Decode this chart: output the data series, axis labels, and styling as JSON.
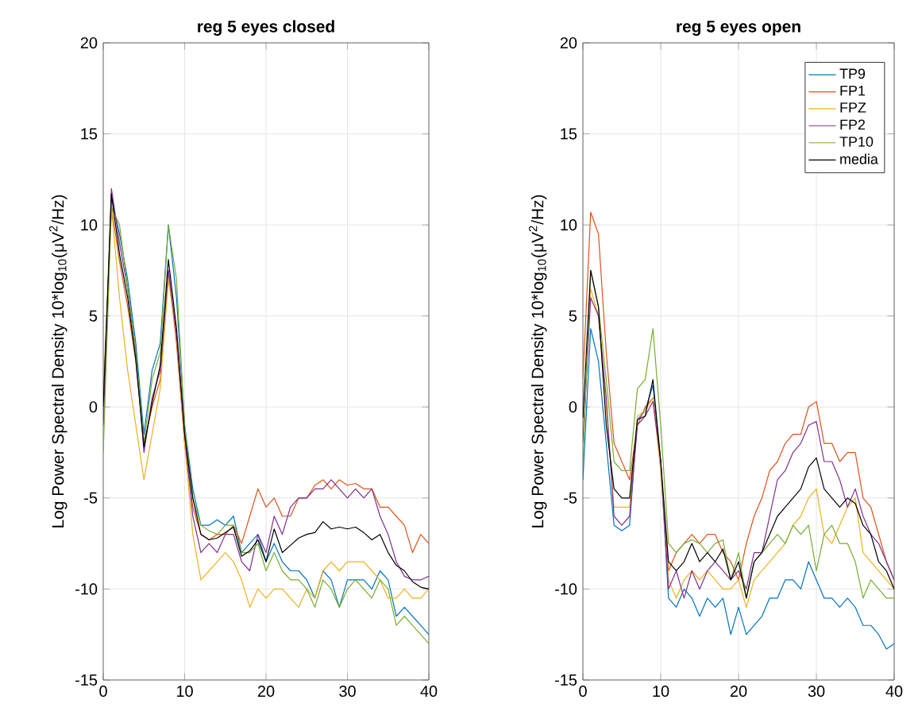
{
  "chart_data": [
    {
      "type": "line",
      "title": "reg 5 eyes closed",
      "ylabel": "Log Power Spectral Density 10*log$_{10}$(μV$^{2}$/Hz)",
      "grid": true,
      "xlim": [
        0,
        40
      ],
      "ylim": [
        -15,
        20
      ],
      "xticks": [
        0,
        10,
        20,
        30,
        40
      ],
      "yticks": [
        -15,
        -10,
        -5,
        0,
        5,
        10,
        15,
        20
      ],
      "x": [
        0,
        1,
        2,
        3,
        4,
        5,
        6,
        7,
        8,
        9,
        10,
        11,
        12,
        13,
        14,
        15,
        16,
        17,
        18,
        19,
        20,
        21,
        22,
        23,
        24,
        25,
        26,
        27,
        28,
        29,
        30,
        31,
        32,
        33,
        34,
        35,
        36,
        37,
        38,
        39,
        40
      ],
      "series": [
        {
          "color": "#0072bd",
          "values": [
            -1,
            11.5,
            9.5,
            7,
            3.5,
            -1.5,
            2,
            3.5,
            10,
            6,
            -1,
            -4.5,
            -6.5,
            -6.5,
            -6.2,
            -6.5,
            -6,
            -8,
            -7.5,
            -7,
            -8.5,
            -7.5,
            -8.5,
            -9,
            -9,
            -9.5,
            -10.5,
            -9,
            -9.5,
            -11,
            -9.5,
            -9.5,
            -9.5,
            -10,
            -9,
            -9.5,
            -11.5,
            -11,
            -11.5,
            -12,
            -12.5
          ]
        },
        {
          "color": "#d95319",
          "values": [
            0.5,
            11,
            8,
            5.5,
            2.5,
            -2,
            0,
            1.5,
            7.5,
            3.5,
            -2,
            -5.5,
            -7,
            -7.3,
            -7,
            -7,
            -6.5,
            -7.5,
            -6,
            -4.5,
            -5.5,
            -5,
            -6,
            -6,
            -5,
            -5,
            -4.3,
            -4,
            -4.5,
            -4,
            -4.3,
            -4.2,
            -4.5,
            -4.5,
            -5.5,
            -5.5,
            -6,
            -6.5,
            -8,
            -7,
            -7.5
          ]
        },
        {
          "color": "#edb120",
          "values": [
            -0.5,
            11,
            6,
            2,
            -1,
            -4,
            -1.5,
            1,
            7,
            4,
            -2,
            -7,
            -9.5,
            -9,
            -8.5,
            -8,
            -8.5,
            -9.5,
            -11,
            -10,
            -10.5,
            -10,
            -10,
            -10.5,
            -11,
            -10,
            -10.5,
            -9,
            -8.5,
            -9,
            -8.5,
            -8.5,
            -8.5,
            -9,
            -9.5,
            -10.5,
            -10.5,
            -10,
            -10.5,
            -10.5,
            -10
          ]
        },
        {
          "color": "#7e2f8e",
          "values": [
            -1,
            12,
            9,
            6.5,
            3,
            -2.5,
            0.5,
            2,
            7.5,
            4,
            -1.5,
            -6,
            -8,
            -7.5,
            -8,
            -7,
            -7,
            -8.5,
            -9,
            -7,
            -8,
            -6,
            -7,
            -5.5,
            -5,
            -5,
            -4.5,
            -4.5,
            -4,
            -4.5,
            -5,
            -4.5,
            -5,
            -4.5,
            -6,
            -7,
            -8.5,
            -9.3,
            -9.5,
            -9.5,
            -9.3
          ]
        },
        {
          "color": "#77ac30",
          "values": [
            -2.5,
            11,
            10,
            6.5,
            3,
            -2,
            1.5,
            3,
            10,
            7,
            -1,
            -5,
            -6.5,
            -6.8,
            -7,
            -6.5,
            -6.5,
            -8,
            -8,
            -7.5,
            -9,
            -8,
            -9,
            -9.5,
            -9.5,
            -10,
            -11,
            -9.5,
            -10,
            -11,
            -10,
            -9.5,
            -10,
            -10.5,
            -9.5,
            -10,
            -12,
            -11.5,
            -12,
            -12.5,
            -13
          ]
        },
        {
          "color": "#000000",
          "values": [
            0,
            11.7,
            8.4,
            6,
            2.6,
            -2.2,
            0.2,
            2.3,
            8.1,
            4.3,
            -1.5,
            -5,
            -7,
            -7.3,
            -7.2,
            -6.9,
            -6.6,
            -8.2,
            -7.9,
            -7.3,
            -8.5,
            -6.7,
            -8,
            -7.6,
            -7.2,
            -7,
            -6.9,
            -6.3,
            -6.7,
            -6.6,
            -6.7,
            -6.6,
            -6.9,
            -7.3,
            -7,
            -8,
            -8.7,
            -9,
            -9.6,
            -9.9,
            -10
          ]
        }
      ]
    },
    {
      "type": "line",
      "title": "reg 5 eyes open",
      "ylabel": "Log Power Spectral Density 10*log$_{10}$(μV$^{2}$/Hz)",
      "grid": true,
      "legend": "top right",
      "xlim": [
        0,
        40
      ],
      "ylim": [
        -15,
        20
      ],
      "xticks": [
        0,
        10,
        20,
        30,
        40
      ],
      "yticks": [
        -15,
        -10,
        -5,
        0,
        5,
        10,
        15,
        20
      ],
      "x": [
        0,
        1,
        2,
        3,
        4,
        5,
        6,
        7,
        8,
        9,
        10,
        11,
        12,
        13,
        14,
        15,
        16,
        17,
        18,
        19,
        20,
        21,
        22,
        23,
        24,
        25,
        26,
        27,
        28,
        29,
        30,
        31,
        32,
        33,
        34,
        35,
        36,
        37,
        38,
        39,
        40
      ],
      "series": [
        {
          "name": "TP9",
          "color": "#0072bd",
          "values": [
            -4,
            4.3,
            2.5,
            -2,
            -6.5,
            -6.8,
            -6.5,
            -0.7,
            -0.2,
            1.2,
            -3,
            -10.5,
            -11,
            -10,
            -10.5,
            -11.5,
            -10.5,
            -11,
            -10.5,
            -12.5,
            -11,
            -12.5,
            -12,
            -11.5,
            -10.5,
            -10.5,
            -9.5,
            -9.5,
            -10,
            -8.5,
            -9.5,
            -10.5,
            -10.5,
            -11,
            -10.5,
            -11,
            -12,
            -12,
            -12.5,
            -13.3,
            -13
          ]
        },
        {
          "name": "FP1",
          "color": "#d95319",
          "values": [
            1.5,
            10.7,
            9.5,
            3,
            -2,
            -3,
            -4,
            -1,
            0,
            0.5,
            -3,
            -9,
            -8,
            -7.5,
            -7,
            -7.5,
            -7,
            -7,
            -8,
            -8.5,
            -9.5,
            -7.5,
            -6,
            -5,
            -3.5,
            -3,
            -2,
            -1.5,
            -1.5,
            0,
            0.3,
            -2,
            -2,
            -3,
            -2.5,
            -2.5,
            -5,
            -5.5,
            -7,
            -8.5,
            -9.5
          ]
        },
        {
          "name": "FPZ",
          "color": "#edb120",
          "values": [
            -2,
            6.5,
            5,
            0,
            -5.5,
            -5.5,
            -5.5,
            -0.5,
            -0.2,
            0.5,
            -3.5,
            -9.5,
            -10.5,
            -9.5,
            -9,
            -9.5,
            -9,
            -9.5,
            -10,
            -10,
            -9.5,
            -11,
            -9.5,
            -9,
            -8.5,
            -8,
            -7.5,
            -6.5,
            -6,
            -5,
            -4.5,
            -7,
            -7.5,
            -6.5,
            -5.5,
            -5,
            -8,
            -8.5,
            -9,
            -9.5,
            -10
          ]
        },
        {
          "name": "FP2",
          "color": "#7e2f8e",
          "values": [
            -2,
            6,
            5,
            0.5,
            -6,
            -6.5,
            -6,
            -1,
            -0.5,
            0.3,
            -3,
            -10,
            -9,
            -10.5,
            -9,
            -10,
            -9,
            -8.5,
            -9,
            -9.5,
            -9,
            -10,
            -8,
            -8,
            -6,
            -4,
            -3.5,
            -2.5,
            -2,
            -1,
            -0.8,
            -3,
            -3,
            -4,
            -5.5,
            -4.5,
            -6,
            -7,
            -7.5,
            -8.5,
            -9.5
          ]
        },
        {
          "name": "TP10",
          "color": "#77ac30",
          "values": [
            -3,
            7.5,
            5.5,
            1.5,
            -3,
            -3.5,
            -3.5,
            1,
            1.5,
            4.3,
            -1,
            -7.5,
            -8,
            -7.5,
            -7.3,
            -7.5,
            -8,
            -7.5,
            -7.3,
            -9.5,
            -8,
            -10.5,
            -8.5,
            -8,
            -7.5,
            -7,
            -7.5,
            -6.5,
            -7,
            -6.5,
            -9,
            -7,
            -6.5,
            -7.5,
            -7.5,
            -8.5,
            -10.5,
            -9.5,
            -10,
            -10.5,
            -10.5
          ]
        },
        {
          "name": "media",
          "color": "#000000",
          "values": [
            -0.6,
            7.5,
            5.5,
            -1,
            -4.5,
            -5,
            -5,
            -0.7,
            -0.5,
            1.5,
            -3,
            -8.5,
            -9,
            -8.5,
            -7.5,
            -8.5,
            -8,
            -8.5,
            -7.8,
            -9.5,
            -8.5,
            -10.5,
            -8.5,
            -8,
            -7,
            -6,
            -5.5,
            -5,
            -4.5,
            -3.3,
            -2.8,
            -4.5,
            -5,
            -5.5,
            -5,
            -5.3,
            -6.5,
            -7,
            -8.5,
            -9,
            -10
          ]
        }
      ]
    }
  ]
}
